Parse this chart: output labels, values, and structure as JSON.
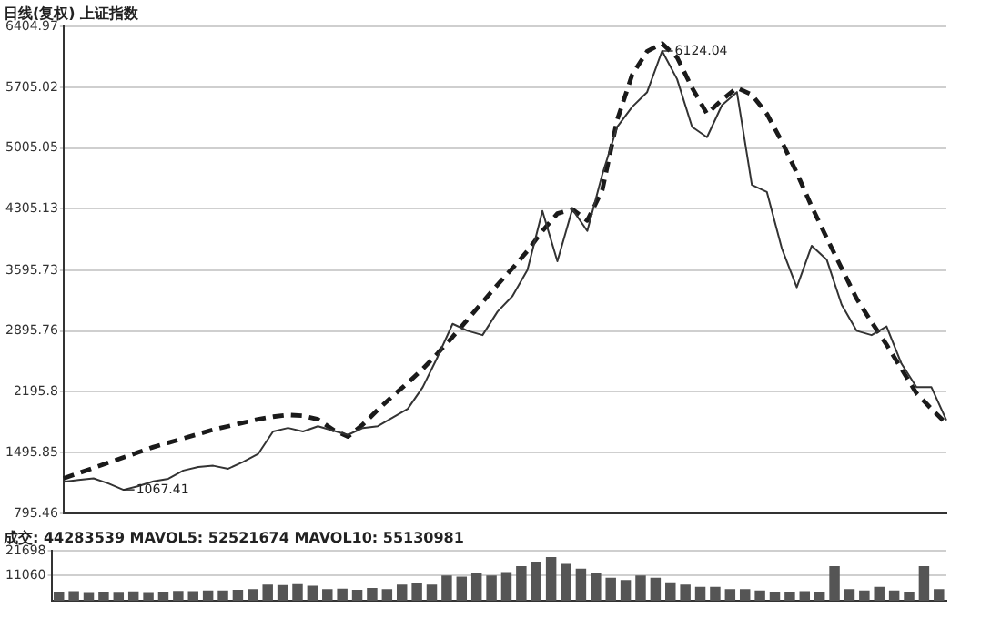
{
  "chart_data": [
    {
      "type": "line",
      "title": "日线(复权) 上证指数",
      "categories": [
        null,
        null,
        null,
        null,
        null,
        null,
        null,
        null,
        null,
        null,
        null,
        null,
        null,
        null,
        null,
        null,
        null,
        null,
        null,
        null,
        null,
        null,
        null,
        null,
        null,
        null,
        null,
        null,
        null,
        null,
        null,
        null,
        null,
        null,
        null,
        null,
        null,
        null,
        null,
        null,
        null,
        null,
        null,
        null,
        null,
        null,
        null,
        null,
        null,
        null,
        null,
        null,
        null,
        null,
        null,
        null,
        null,
        null,
        null,
        null
      ],
      "series": [
        {
          "color": "#333333",
          "line_style": "solid",
          "values": [
            1160,
            1180,
            1200,
            1140,
            1067,
            1110,
            1165,
            1195,
            1290,
            1330,
            1345,
            1310,
            1390,
            1480,
            1740,
            1780,
            1740,
            1800,
            1750,
            1700,
            1780,
            1800,
            1900,
            2000,
            2250,
            2600,
            2980,
            2900,
            2850,
            3120,
            3300,
            3600,
            4280,
            3700,
            4300,
            4050,
            4700,
            5250,
            5480,
            5650,
            6124,
            5800,
            5250,
            5130,
            5500,
            5650,
            4580,
            4500,
            3850,
            3400,
            3880,
            3720,
            3200,
            2900,
            2850,
            2950,
            2520,
            2250,
            2250,
            1870
          ]
        },
        {
          "color": "#1a1a1a",
          "line_style": "dashed",
          "values": [
            1200,
            1260,
            1320,
            1380,
            1440,
            1500,
            1560,
            1610,
            1660,
            1710,
            1760,
            1800,
            1840,
            1880,
            1910,
            1930,
            1920,
            1880,
            1760,
            1680,
            1820,
            1990,
            2150,
            2300,
            2460,
            2640,
            2830,
            3030,
            3230,
            3430,
            3620,
            3820,
            4050,
            4250,
            4300,
            4170,
            4520,
            5330,
            5850,
            6120,
            6210,
            6050,
            5700,
            5400,
            5560,
            5700,
            5620,
            5400,
            5080,
            4720,
            4330,
            3970,
            3620,
            3270,
            3000,
            2740,
            2460,
            2180,
            2000,
            1830
          ]
        }
      ],
      "ylim": [
        795.46,
        6404.97
      ],
      "yticks": [
        795.46,
        1495.85,
        2195.8,
        2895.76,
        3595.73,
        4305.13,
        5005.05,
        5705.02,
        6404.97
      ],
      "grid": "y",
      "legend": false,
      "marker": "none",
      "tick_labels": "y",
      "annotations": [
        "6124.04",
        "1067.41"
      ]
    },
    {
      "type": "bar",
      "title": "成交: 44283539 MAVOL5: 52521674 MAVOL10: 55130981",
      "categories": [
        null,
        null,
        null,
        null,
        null,
        null,
        null,
        null,
        null,
        null,
        null,
        null,
        null,
        null,
        null,
        null,
        null,
        null,
        null,
        null,
        null,
        null,
        null,
        null,
        null,
        null,
        null,
        null,
        null,
        null,
        null,
        null,
        null,
        null,
        null,
        null,
        null,
        null,
        null,
        null,
        null,
        null,
        null,
        null,
        null,
        null,
        null,
        null,
        null,
        null,
        null,
        null,
        null,
        null,
        null,
        null,
        null,
        null,
        null,
        null
      ],
      "values": [
        4000,
        4200,
        3800,
        4000,
        3900,
        4100,
        3800,
        4000,
        4300,
        4200,
        4500,
        4500,
        4800,
        5000,
        7000,
        6800,
        7200,
        6500,
        5000,
        5200,
        4800,
        5500,
        5000,
        7000,
        7500,
        7000,
        11000,
        10500,
        12000,
        11000,
        12500,
        15000,
        17000,
        19000,
        16000,
        14000,
        12000,
        10000,
        9000,
        11000,
        10000,
        8000,
        7000,
        6000,
        6000,
        5000,
        5000,
        4500,
        4000,
        4000,
        4200,
        4000,
        15000,
        5000,
        4500,
        6000,
        4500,
        4000,
        15000,
        5000
      ],
      "color": "#555555",
      "ylim": [
        0,
        21698
      ],
      "yticks": [
        11060,
        21698
      ],
      "grid": "y",
      "legend": false,
      "tick_labels": "y"
    }
  ]
}
